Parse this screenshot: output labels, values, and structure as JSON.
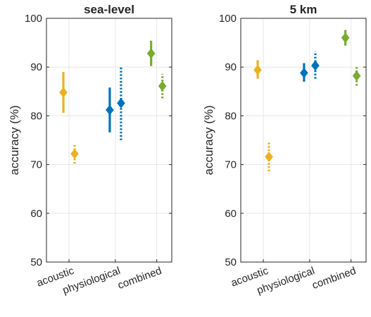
{
  "chart_data": [
    {
      "type": "scatter",
      "title": "sea-level",
      "xlabel": "",
      "ylabel": "accuracy (%)",
      "ylim": [
        50,
        100
      ],
      "yticks": [
        50,
        60,
        70,
        80,
        90,
        100
      ],
      "categories": [
        "acoustic",
        "physiological",
        "combined"
      ],
      "grid": true,
      "points": [
        {
          "category": "acoustic",
          "line": "solid",
          "color": "#EDB120",
          "value": 84.8,
          "low": 80.6,
          "high": 89.0
        },
        {
          "category": "acoustic",
          "line": "dotted",
          "color": "#EDB120",
          "value": 72.2,
          "low": 70.2,
          "high": 74.3
        },
        {
          "category": "physiological",
          "line": "solid",
          "color": "#0072BD",
          "value": 81.2,
          "low": 76.6,
          "high": 85.8
        },
        {
          "category": "physiological",
          "line": "dotted",
          "color": "#0072BD",
          "value": 82.6,
          "low": 75.0,
          "high": 90.2
        },
        {
          "category": "combined",
          "line": "solid",
          "color": "#77AC30",
          "value": 92.8,
          "low": 90.2,
          "high": 95.4
        },
        {
          "category": "combined",
          "line": "dotted",
          "color": "#77AC30",
          "value": 86.1,
          "low": 83.6,
          "high": 88.6
        }
      ]
    },
    {
      "type": "scatter",
      "title": "5 km",
      "xlabel": "",
      "ylabel": "accuracy (%)",
      "ylim": [
        50,
        100
      ],
      "yticks": [
        50,
        60,
        70,
        80,
        90,
        100
      ],
      "categories": [
        "acoustic",
        "physiological",
        "combined"
      ],
      "grid": true,
      "points": [
        {
          "category": "acoustic",
          "line": "solid",
          "color": "#EDB120",
          "value": 89.4,
          "low": 87.6,
          "high": 91.4
        },
        {
          "category": "acoustic",
          "line": "dotted",
          "color": "#EDB120",
          "value": 71.6,
          "low": 68.6,
          "high": 74.6
        },
        {
          "category": "physiological",
          "line": "solid",
          "color": "#0072BD",
          "value": 88.8,
          "low": 87.0,
          "high": 90.8
        },
        {
          "category": "physiological",
          "line": "dotted",
          "color": "#0072BD",
          "value": 90.3,
          "low": 87.6,
          "high": 93.2
        },
        {
          "category": "combined",
          "line": "solid",
          "color": "#77AC30",
          "value": 96.0,
          "low": 94.4,
          "high": 97.6
        },
        {
          "category": "combined",
          "line": "dotted",
          "color": "#77AC30",
          "value": 88.2,
          "low": 86.2,
          "high": 90.1
        }
      ]
    }
  ]
}
